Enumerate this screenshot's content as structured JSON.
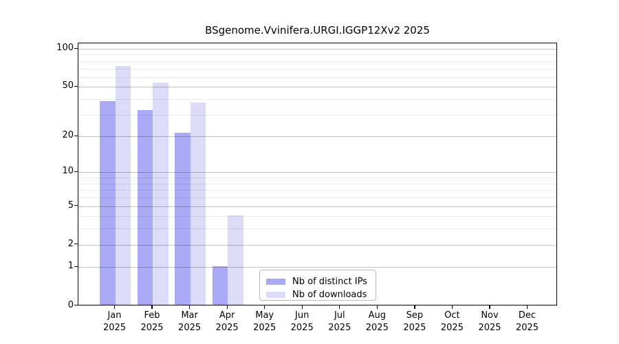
{
  "chart_data": {
    "type": "bar",
    "title": "BSgenome.Vvinifera.URGI.IGGP12Xv2 2025",
    "categories": [
      "Jan",
      "Feb",
      "Mar",
      "Apr",
      "May",
      "Jun",
      "Jul",
      "Aug",
      "Sep",
      "Oct",
      "Nov",
      "Dec"
    ],
    "category_year": "2025",
    "series": [
      {
        "name": "Nb of distinct IPs",
        "color": "#a9a9f5",
        "values": [
          38,
          32,
          21,
          1,
          0,
          0,
          0,
          0,
          0,
          0,
          0,
          0
        ]
      },
      {
        "name": "Nb of downloads",
        "color": "#dcdcf8",
        "values": [
          72,
          53,
          37,
          4,
          0,
          0,
          0,
          0,
          0,
          0,
          0,
          0
        ]
      }
    ],
    "xlabel": "",
    "ylabel": "",
    "y_axis": {
      "scale": "log10(value+1)",
      "major_ticks": [
        0,
        1,
        2,
        5,
        10,
        20,
        50,
        100
      ],
      "minor_gridlines": [
        3,
        4,
        6,
        7,
        8,
        9,
        30,
        40,
        60,
        70,
        80,
        90
      ],
      "range": [
        0,
        110
      ]
    },
    "grid": "horizontal",
    "legend_position": "bottom-center"
  }
}
